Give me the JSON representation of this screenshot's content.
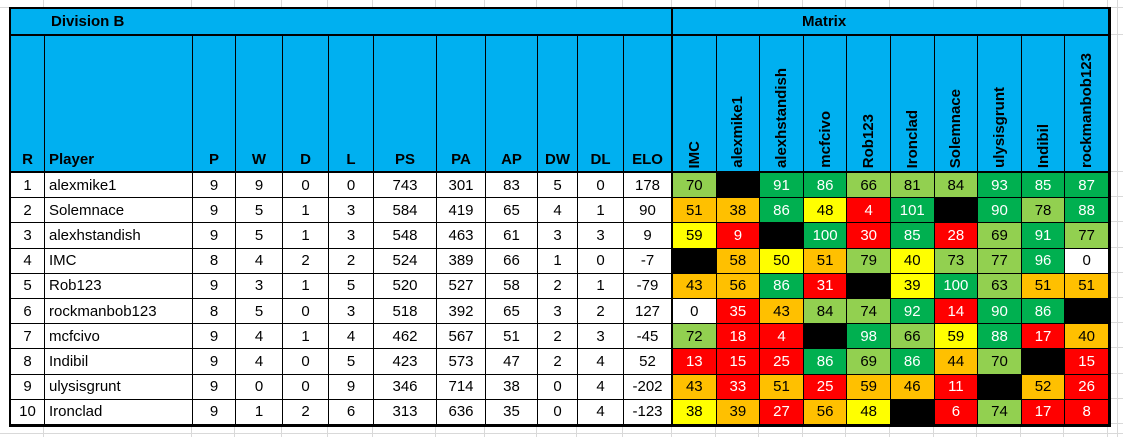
{
  "titles": {
    "division": "Division B",
    "matrix": "Matrix"
  },
  "columns": [
    "R",
    "Player",
    "P",
    "W",
    "D",
    "L",
    "PS",
    "PA",
    "AP",
    "DW",
    "DL",
    "ELO"
  ],
  "matrix_columns": [
    "IMC",
    "alexmike1",
    "alexhstandish",
    "mcfcivo",
    "Rob123",
    "Ironclad",
    "Solemnace",
    "ulysisgrunt",
    "Indibil",
    "rockmanbob123"
  ],
  "rows": [
    [
      "1",
      "alexmike1",
      "9",
      "9",
      "0",
      "0",
      "743",
      "301",
      "83",
      "5",
      "0",
      "178"
    ],
    [
      "2",
      "Solemnace",
      "9",
      "5",
      "1",
      "3",
      "584",
      "419",
      "65",
      "4",
      "1",
      "90"
    ],
    [
      "3",
      "alexhstandish",
      "9",
      "5",
      "1",
      "3",
      "548",
      "463",
      "61",
      "3",
      "3",
      "9"
    ],
    [
      "4",
      "IMC",
      "8",
      "4",
      "2",
      "2",
      "524",
      "389",
      "66",
      "1",
      "0",
      "-7"
    ],
    [
      "5",
      "Rob123",
      "9",
      "3",
      "1",
      "5",
      "520",
      "527",
      "58",
      "2",
      "1",
      "-79"
    ],
    [
      "6",
      "rockmanbob123",
      "8",
      "5",
      "0",
      "3",
      "518",
      "392",
      "65",
      "3",
      "2",
      "127"
    ],
    [
      "7",
      "mcfcivo",
      "9",
      "4",
      "1",
      "4",
      "462",
      "567",
      "51",
      "2",
      "3",
      "-45"
    ],
    [
      "8",
      "Indibil",
      "9",
      "4",
      "0",
      "5",
      "423",
      "573",
      "47",
      "2",
      "4",
      "52"
    ],
    [
      "9",
      "ulysisgrunt",
      "9",
      "0",
      "0",
      "9",
      "346",
      "714",
      "38",
      "0",
      "4",
      "-202"
    ],
    [
      "10",
      "Ironclad",
      "9",
      "1",
      "2",
      "6",
      "313",
      "636",
      "35",
      "0",
      "4",
      "-123"
    ]
  ],
  "matrix_rows": [
    {
      "values": [
        "70",
        "",
        "91",
        "86",
        "66",
        "81",
        "84",
        "93",
        "85",
        "87"
      ],
      "colors": [
        "lg",
        "k",
        "dg",
        "dg",
        "lg",
        "lg",
        "lg",
        "dg",
        "dg",
        "dg"
      ]
    },
    {
      "values": [
        "51",
        "38",
        "86",
        "48",
        "4",
        "101",
        "",
        "90",
        "78",
        "88"
      ],
      "colors": [
        "o",
        "o",
        "dg",
        "y",
        "r",
        "dg",
        "k",
        "dg",
        "lg",
        "dg"
      ]
    },
    {
      "values": [
        "59",
        "9",
        "",
        "100",
        "30",
        "85",
        "28",
        "69",
        "91",
        "77"
      ],
      "colors": [
        "y",
        "r",
        "k",
        "dg",
        "r",
        "dg",
        "r",
        "lg",
        "dg",
        "lg"
      ]
    },
    {
      "values": [
        "",
        "58",
        "50",
        "51",
        "79",
        "40",
        "73",
        "77",
        "96",
        "0"
      ],
      "colors": [
        "k",
        "o",
        "y",
        "o",
        "lg",
        "y",
        "lg",
        "lg",
        "dg",
        "w"
      ]
    },
    {
      "values": [
        "43",
        "56",
        "86",
        "31",
        "",
        "39",
        "100",
        "63",
        "51",
        "51"
      ],
      "colors": [
        "o",
        "o",
        "dg",
        "r",
        "k",
        "y",
        "dg",
        "lg",
        "o",
        "o"
      ]
    },
    {
      "values": [
        "0",
        "35",
        "43",
        "84",
        "74",
        "92",
        "14",
        "90",
        "86",
        ""
      ],
      "colors": [
        "w",
        "r",
        "o",
        "lg",
        "lg",
        "dg",
        "r",
        "dg",
        "dg",
        "k"
      ]
    },
    {
      "values": [
        "72",
        "18",
        "4",
        "",
        "98",
        "66",
        "59",
        "88",
        "17",
        "40"
      ],
      "colors": [
        "lg",
        "r",
        "r",
        "k",
        "dg",
        "lg",
        "y",
        "dg",
        "r",
        "o"
      ]
    },
    {
      "values": [
        "13",
        "15",
        "25",
        "86",
        "69",
        "86",
        "44",
        "70",
        "",
        "15"
      ],
      "colors": [
        "r",
        "r",
        "r",
        "dg",
        "lg",
        "dg",
        "o",
        "lg",
        "k",
        "r"
      ]
    },
    {
      "values": [
        "43",
        "33",
        "51",
        "25",
        "59",
        "46",
        "11",
        "",
        "52",
        "26"
      ],
      "colors": [
        "o",
        "r",
        "o",
        "r",
        "o",
        "o",
        "r",
        "k",
        "o",
        "r"
      ]
    },
    {
      "values": [
        "38",
        "39",
        "27",
        "56",
        "48",
        "",
        "6",
        "74",
        "17",
        "8"
      ],
      "colors": [
        "y",
        "o",
        "r",
        "o",
        "y",
        "k",
        "r",
        "lg",
        "r",
        "r"
      ]
    }
  ],
  "colors": {
    "header_blue": "#00B0F0",
    "light_green": "#92D050",
    "dark_green": "#00B050",
    "yellow": "#FFFF00",
    "orange": "#FFC000",
    "red": "#FF0000",
    "black_cell": "#000000",
    "gridline": "#D9D9D9"
  }
}
